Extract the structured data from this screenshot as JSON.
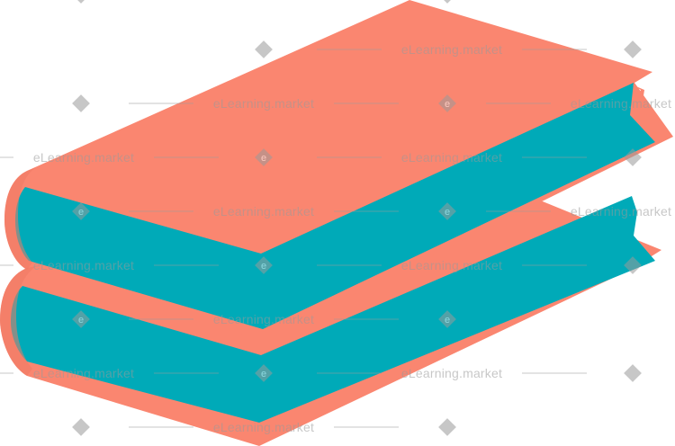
{
  "illustration": {
    "subject": "stack-of-two-books",
    "colors": {
      "cover": "#FA8670",
      "cover_shadow": "#EE7A64",
      "pages": "#00AAB8",
      "pages_dark": "#0096A4",
      "background": "#FFFFFF"
    }
  },
  "watermark": {
    "text": "eLearning.market",
    "badge_letter": "e",
    "color": "#9A9A9A"
  }
}
